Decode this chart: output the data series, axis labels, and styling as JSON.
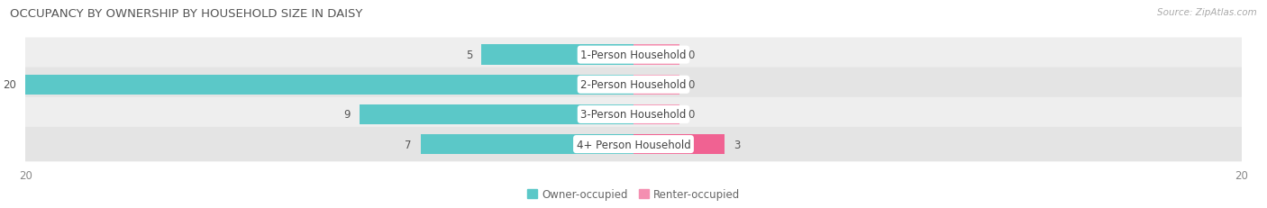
{
  "title": "OCCUPANCY BY OWNERSHIP BY HOUSEHOLD SIZE IN DAISY",
  "source": "Source: ZipAtlas.com",
  "categories": [
    "1-Person Household",
    "2-Person Household",
    "3-Person Household",
    "4+ Person Household"
  ],
  "owner_values": [
    5,
    20,
    9,
    7
  ],
  "renter_values": [
    0,
    0,
    0,
    3
  ],
  "owner_color": "#5bc8c8",
  "renter_color": "#f48fb1",
  "renter_color_bright": "#f06292",
  "row_bg_light": "#ececec",
  "row_bg_dark": "#e0e0e0",
  "axis_max": 20,
  "title_fontsize": 9.5,
  "source_fontsize": 7.5,
  "legend_fontsize": 8.5,
  "bar_label_fontsize": 8.5,
  "category_label_fontsize": 8.5,
  "renter_stub": 1.5
}
